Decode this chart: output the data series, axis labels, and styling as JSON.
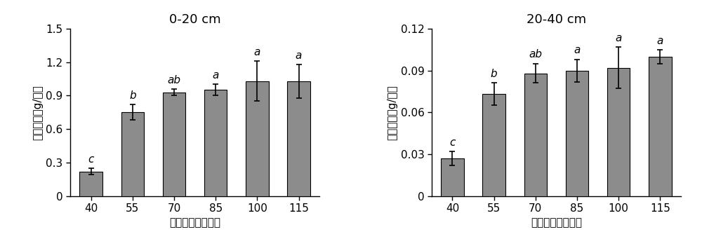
{
  "left": {
    "title": "0-20 cm",
    "ylabel": "根系干重（g/株）",
    "xlabel": "播种后天数（天）",
    "categories": [
      "40",
      "55",
      "70",
      "85",
      "100",
      "115"
    ],
    "values": [
      0.22,
      0.75,
      0.93,
      0.95,
      1.03,
      1.03
    ],
    "errors": [
      0.03,
      0.07,
      0.03,
      0.05,
      0.18,
      0.15
    ],
    "letters": [
      "c",
      "b",
      "ab",
      "a",
      "a",
      "a"
    ],
    "ylim": [
      0,
      1.5
    ],
    "yticks": [
      0,
      0.3,
      0.6,
      0.9,
      1.2,
      1.5
    ],
    "yticklabels": [
      "0",
      "0.3",
      "0.6",
      "0.9",
      "1.2",
      "1.5"
    ]
  },
  "right": {
    "title": "20-40 cm",
    "ylabel": "根系干重（g/株）",
    "xlabel": "播种后天数（天）",
    "categories": [
      "40",
      "55",
      "70",
      "85",
      "100",
      "115"
    ],
    "values": [
      0.027,
      0.073,
      0.088,
      0.09,
      0.092,
      0.1
    ],
    "errors": [
      0.005,
      0.008,
      0.007,
      0.008,
      0.015,
      0.005
    ],
    "letters": [
      "c",
      "b",
      "ab",
      "a",
      "a",
      "a"
    ],
    "ylim": [
      0,
      0.12
    ],
    "yticks": [
      0,
      0.03,
      0.06,
      0.09,
      0.12
    ],
    "yticklabels": [
      "0",
      "0.03",
      "0.06",
      "0.09",
      "0.12"
    ]
  },
  "bar_color": "#8c8c8c",
  "bar_edgecolor": "#000000",
  "background_color": "#ffffff",
  "title_fontsize": 13,
  "label_fontsize": 11,
  "tick_fontsize": 11,
  "letter_fontsize": 11,
  "bar_width": 0.55,
  "error_capsize": 3,
  "error_linewidth": 1.2
}
